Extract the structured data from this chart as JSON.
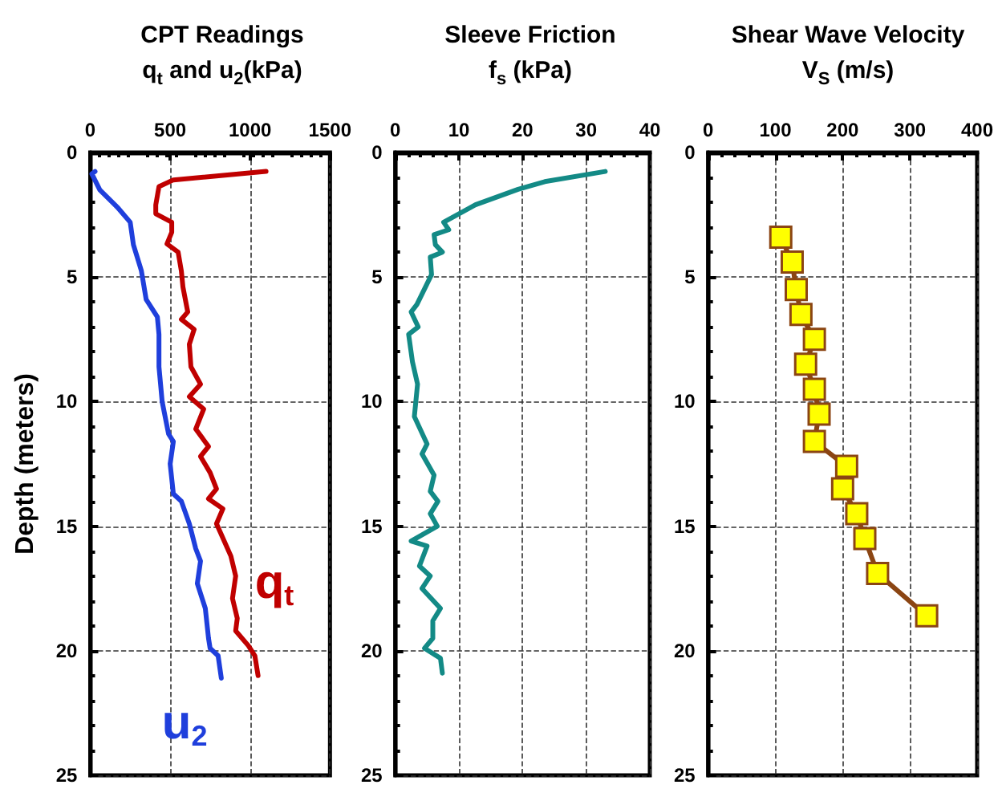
{
  "chart_data": [
    {
      "type": "line",
      "title": "CPT Readings",
      "subtitle": "q$_{t}$ and u$_{2}$(kPa)",
      "ylabel": "Depth (meters)",
      "xlim": [
        0,
        1500
      ],
      "xticks": [
        0,
        500,
        1000,
        1500
      ],
      "ylim": [
        25,
        0
      ],
      "yticks": [
        0,
        5,
        10,
        15,
        20,
        25
      ],
      "grid": true,
      "legend": false,
      "marker": "none",
      "line_style": "solid",
      "series": [
        {
          "name": "q$_{t}$",
          "color": "#c00000",
          "x": [
            1100,
            520,
            430,
            410,
            410,
            510,
            510,
            480,
            550,
            570,
            580,
            610,
            570,
            650,
            620,
            630,
            690,
            620,
            710,
            660,
            740,
            690,
            750,
            790,
            740,
            830,
            790,
            880,
            910,
            890,
            920,
            910,
            990,
            1030,
            1050
          ],
          "values": [
            0.76,
            1.1,
            1.37,
            2.1,
            2.46,
            2.8,
            3.2,
            3.67,
            4.0,
            4.75,
            5.4,
            6.4,
            6.7,
            7.1,
            7.7,
            8.6,
            9.3,
            9.8,
            10.3,
            11.1,
            11.8,
            12.2,
            12.85,
            13.5,
            13.9,
            14.3,
            14.9,
            16.2,
            17.0,
            17.9,
            18.7,
            19.2,
            19.8,
            20.2,
            21.0
          ]
        },
        {
          "name": "u$_{2}$",
          "color": "#1f3fdc",
          "x": [
            30,
            10,
            60,
            170,
            250,
            270,
            320,
            350,
            420,
            430,
            430,
            450,
            490,
            520,
            500,
            520,
            570,
            620,
            660,
            690,
            670,
            720,
            740,
            750,
            800,
            820
          ],
          "values": [
            0.76,
            0.86,
            1.5,
            2.2,
            2.8,
            3.7,
            4.75,
            5.9,
            6.6,
            7.3,
            8.6,
            10.0,
            11.3,
            11.6,
            12.5,
            13.7,
            14.0,
            14.9,
            15.9,
            16.4,
            17.3,
            18.3,
            19.5,
            19.9,
            20.2,
            21.1
          ]
        }
      ]
    },
    {
      "type": "line",
      "title": "Sleeve Friction",
      "subtitle": "f$_{s}$ (kPa)",
      "xlim": [
        0,
        40
      ],
      "xticks": [
        0,
        10,
        20,
        30,
        40
      ],
      "ylim": [
        25,
        0
      ],
      "yticks": [
        0,
        5,
        10,
        15,
        20,
        25
      ],
      "grid": true,
      "legend": false,
      "marker": "none",
      "line_style": "solid",
      "series": [
        {
          "color": "#138a86",
          "x": [
            33.0,
            23.5,
            19.3,
            12.6,
            7.6,
            8.4,
            6.1,
            6.3,
            7.4,
            5.5,
            5.7,
            3.4,
            2.5,
            3.6,
            2.1,
            2.7,
            3.5,
            3.0,
            5.0,
            4.2,
            6.1,
            5.5,
            6.7,
            5.5,
            6.6,
            2.5,
            5.0,
            3.8,
            5.5,
            4.2,
            7.1,
            5.9,
            5.9,
            4.6,
            7.1,
            7.4
          ],
          "values": [
            0.76,
            1.17,
            1.48,
            2.1,
            2.8,
            3.1,
            3.3,
            3.7,
            4.0,
            4.2,
            4.9,
            6.1,
            6.4,
            7.0,
            7.3,
            8.4,
            9.3,
            10.6,
            11.7,
            12.1,
            12.95,
            13.6,
            14.0,
            14.5,
            15.0,
            15.6,
            15.8,
            16.6,
            17.0,
            17.5,
            18.3,
            18.8,
            19.5,
            19.9,
            20.3,
            20.9
          ]
        }
      ]
    },
    {
      "type": "line",
      "title": "Shear Wave Velocity",
      "subtitle": "V$_{S}$ (m/s)",
      "xlim": [
        0,
        400
      ],
      "xticks": [
        0,
        100,
        200,
        300,
        400
      ],
      "ylim": [
        25,
        0
      ],
      "yticks": [
        0,
        5,
        10,
        15,
        20,
        25
      ],
      "grid": true,
      "legend": false,
      "marker": "square",
      "line_style": "solid",
      "series": [
        {
          "color": "#ffff00",
          "x": [
            108,
            125,
            131,
            138,
            158,
            145,
            158,
            165,
            158,
            206,
            200,
            221,
            233,
            252,
            325
          ],
          "values": [
            3.4,
            4.4,
            5.5,
            6.5,
            7.5,
            8.5,
            9.5,
            10.5,
            11.6,
            12.6,
            13.5,
            14.5,
            15.5,
            16.9,
            18.6
          ]
        }
      ]
    }
  ]
}
